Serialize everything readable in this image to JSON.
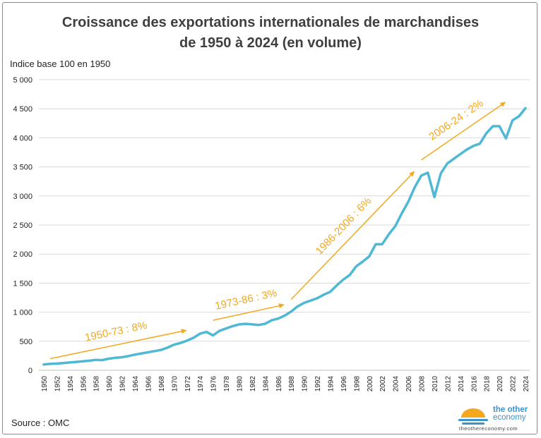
{
  "title_line1": "Croissance des exportations internationales de marchandises",
  "title_line2": "de 1950 à 2024 (en volume)",
  "y_axis_label": "Indice base 100 en 1950",
  "source": "Source : OMC",
  "logo": {
    "name_line1": "the other",
    "name_line2": "economy",
    "url": "theothereconomy.com"
  },
  "colors": {
    "line": "#4fb8d4",
    "annotation": "#f4a81d",
    "grid": "#d9d9d9"
  },
  "chart_data": {
    "type": "line",
    "title": "Croissance des exportations internationales de marchandises de 1950 à 2024 (en volume)",
    "ylabel": "Indice base 100 en 1950",
    "xlabel": "",
    "ylim": [
      0,
      5000
    ],
    "y_ticks": [
      "0",
      "500",
      "1 000",
      "1 500",
      "2 000",
      "2 500",
      "3 000",
      "3 500",
      "4 000",
      "4 500",
      "5 000"
    ],
    "x_ticks": [
      "1950",
      "1952",
      "1954",
      "1956",
      "1958",
      "1960",
      "1962",
      "1964",
      "1966",
      "1968",
      "1970",
      "1972",
      "1974",
      "1976",
      "1978",
      "1980",
      "1982",
      "1984",
      "1986",
      "1988",
      "1990",
      "1992",
      "1994",
      "1996",
      "1998",
      "2000",
      "2002",
      "2004",
      "2006",
      "2008",
      "2010",
      "2012",
      "2014",
      "2016",
      "2018",
      "2020",
      "2022",
      "2024"
    ],
    "grid": "horizontal",
    "x": [
      1950,
      1951,
      1952,
      1953,
      1954,
      1955,
      1956,
      1957,
      1958,
      1959,
      1960,
      1961,
      1962,
      1963,
      1964,
      1965,
      1966,
      1967,
      1968,
      1969,
      1970,
      1971,
      1972,
      1973,
      1974,
      1975,
      1976,
      1977,
      1978,
      1979,
      1980,
      1981,
      1982,
      1983,
      1984,
      1985,
      1986,
      1987,
      1988,
      1989,
      1990,
      1991,
      1992,
      1993,
      1994,
      1995,
      1996,
      1997,
      1998,
      1999,
      2000,
      2001,
      2002,
      2003,
      2004,
      2005,
      2006,
      2007,
      2008,
      2009,
      2010,
      2011,
      2012,
      2013,
      2014,
      2015,
      2016,
      2017,
      2018,
      2019,
      2020,
      2021,
      2022,
      2023,
      2024
    ],
    "y": [
      100,
      110,
      115,
      125,
      135,
      145,
      155,
      165,
      180,
      175,
      200,
      215,
      225,
      245,
      270,
      290,
      310,
      330,
      350,
      390,
      440,
      470,
      510,
      560,
      630,
      660,
      600,
      680,
      720,
      760,
      790,
      800,
      790,
      780,
      800,
      860,
      890,
      940,
      1010,
      1100,
      1160,
      1200,
      1240,
      1300,
      1350,
      1460,
      1560,
      1640,
      1790,
      1870,
      1960,
      2170,
      2170,
      2340,
      2480,
      2700,
      2900,
      3150,
      3350,
      3400,
      2980,
      3390,
      3560,
      3640,
      3720,
      3800,
      3860,
      3900,
      4080,
      4200,
      4200,
      3990,
      4300,
      4370,
      4510
    ],
    "annotations": [
      {
        "text": "1950-73 : 8%",
        "from": [
          1951,
          200
        ],
        "to": [
          1972,
          690
        ]
      },
      {
        "text": "1973-86 : 3%",
        "from": [
          1976,
          860
        ],
        "to": [
          1987,
          1130
        ]
      },
      {
        "text": "1986-2006 : 6%",
        "from": [
          1988,
          1220
        ],
        "to": [
          2007,
          3430
        ]
      },
      {
        "text": "2006-24 : 2%",
        "from": [
          2008,
          3620
        ],
        "to": [
          2021,
          4620
        ]
      }
    ]
  }
}
